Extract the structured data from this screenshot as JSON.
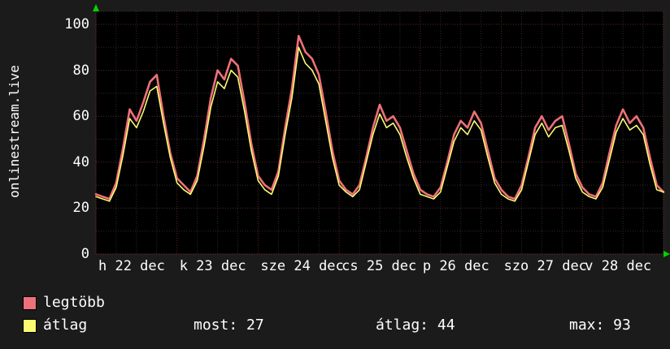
{
  "panel": {
    "background": "#1b1b1b",
    "plot_background": "#000000"
  },
  "y_axis_label": "onlinestream.live",
  "legend": {
    "series": [
      {
        "label": "legtöbb",
        "color": "#ee7078"
      },
      {
        "label": "átlag",
        "color": "#fafa70"
      }
    ],
    "stats": [
      "most: 27",
      "átlag: 44",
      "max: 93"
    ]
  },
  "chart_data": {
    "type": "line",
    "title": "",
    "xlabel": "",
    "ylabel": "onlinestream.live",
    "ylim": [
      0,
      100
    ],
    "y_ticks": [
      0,
      20,
      40,
      60,
      80,
      100
    ],
    "x_tick_labels": [
      "h 22 dec",
      "k 23 dec",
      "sze 24 dec",
      "cs 25 dec",
      "p 26 dec",
      "szo 27 dec",
      "v 28 dec"
    ],
    "days_spanned": 7,
    "grid": {
      "major_color": "#5a2727",
      "minor_color": "#2c2c2c",
      "frame_color": "#5a2727",
      "arrow_color": "#00d400",
      "grid_on": true
    },
    "legend_position": "bottom-left",
    "stats": {
      "most": 27,
      "atlag": 44,
      "max": 93
    },
    "series": [
      {
        "name": "legtöbb",
        "color": "#ee7078",
        "values": [
          26,
          25,
          24,
          31,
          46,
          63,
          58,
          66,
          75,
          78,
          60,
          44,
          33,
          30,
          27,
          34,
          50,
          68,
          80,
          76,
          85,
          82,
          66,
          48,
          34,
          30,
          28,
          36,
          55,
          72,
          95,
          88,
          85,
          78,
          62,
          45,
          32,
          28,
          26,
          30,
          42,
          55,
          65,
          58,
          60,
          55,
          45,
          35,
          28,
          26,
          25,
          29,
          40,
          52,
          58,
          55,
          62,
          57,
          45,
          33,
          28,
          25,
          24,
          30,
          42,
          55,
          60,
          54,
          58,
          60,
          48,
          35,
          29,
          26,
          25,
          31,
          44,
          56,
          63,
          57,
          60,
          55,
          42,
          30,
          27
        ]
      },
      {
        "name": "átlag",
        "color": "#fafa70",
        "values": [
          25,
          24,
          23,
          29,
          43,
          59,
          55,
          62,
          71,
          73,
          57,
          42,
          31,
          28,
          26,
          32,
          47,
          64,
          75,
          72,
          80,
          77,
          62,
          45,
          32,
          28,
          26,
          34,
          52,
          68,
          90,
          83,
          80,
          74,
          58,
          42,
          30,
          27,
          25,
          28,
          40,
          52,
          61,
          55,
          57,
          52,
          42,
          33,
          26,
          25,
          24,
          27,
          38,
          49,
          55,
          52,
          58,
          54,
          42,
          31,
          26,
          24,
          23,
          28,
          40,
          52,
          57,
          51,
          55,
          56,
          45,
          33,
          27,
          25,
          24,
          29,
          41,
          53,
          59,
          54,
          56,
          52,
          39,
          28,
          27
        ]
      }
    ]
  }
}
